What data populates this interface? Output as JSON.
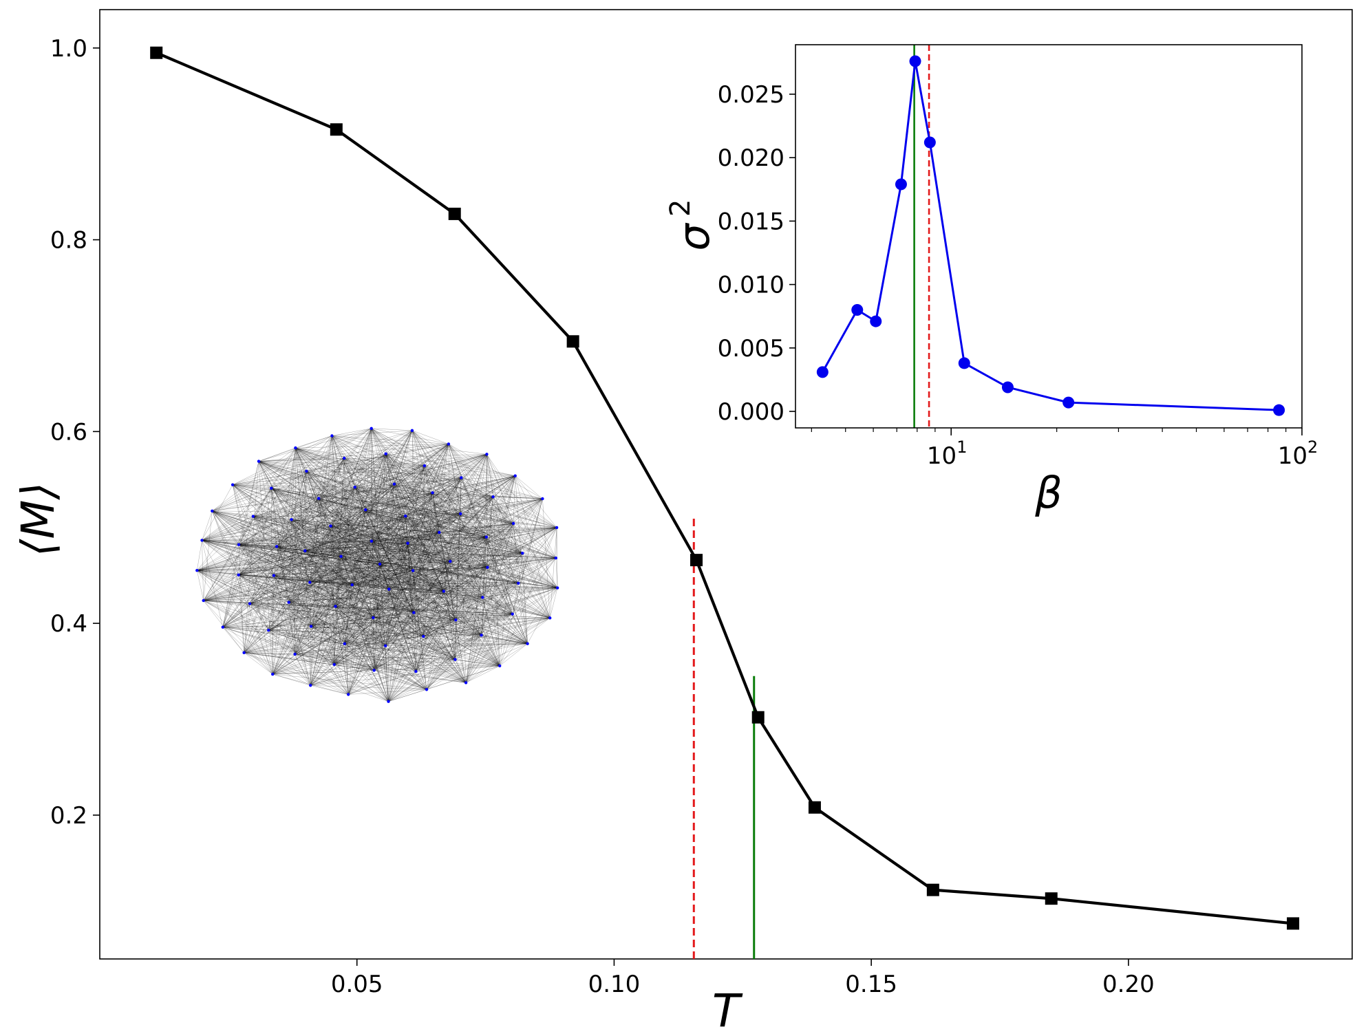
{
  "chart_data": [
    {
      "type": "line",
      "name": "main",
      "xlabel": "T",
      "ylabel": "⟨M⟩",
      "xlim": [
        0.0,
        0.2435
      ],
      "ylim": [
        0.05,
        1.04
      ],
      "xticks": [
        0.05,
        0.1,
        0.15,
        0.2
      ],
      "xtick_labels": [
        "0.05",
        "0.10",
        "0.15",
        "0.20"
      ],
      "yticks": [
        0.2,
        0.4,
        0.6,
        0.8,
        1.0
      ],
      "ytick_labels": [
        "0.2",
        "0.4",
        "0.6",
        "0.8",
        "1.0"
      ],
      "grid": false,
      "series": [
        {
          "color": "#000000",
          "marker": "square",
          "x": [
            0.011,
            0.046,
            0.069,
            0.092,
            0.116,
            0.128,
            0.139,
            0.162,
            0.185,
            0.232
          ],
          "y": [
            0.995,
            0.915,
            0.827,
            0.694,
            0.466,
            0.302,
            0.208,
            0.122,
            0.113,
            0.087
          ]
        }
      ],
      "vlines": [
        {
          "x": 0.1155,
          "ymax": 0.51,
          "color": "#e31a1c",
          "style": "dashed"
        },
        {
          "x": 0.1272,
          "ymax": 0.345,
          "color": "#0a7d0a",
          "style": "solid"
        }
      ]
    },
    {
      "type": "line",
      "name": "inset",
      "xlabel": "β",
      "ylabel": "σ",
      "ylabel_sup": "2",
      "xscale": "log",
      "xlim": [
        3.6,
        100
      ],
      "ylim": [
        -0.0013,
        0.0289
      ],
      "xticks": [
        10,
        100
      ],
      "xtick_labels": [
        {
          "base": "10",
          "exp": "1"
        },
        {
          "base": "10",
          "exp": "2"
        }
      ],
      "yticks": [
        0.0,
        0.005,
        0.01,
        0.015,
        0.02,
        0.025
      ],
      "ytick_labels": [
        "0.000",
        "0.005",
        "0.010",
        "0.015",
        "0.020",
        "0.025"
      ],
      "grid": false,
      "series": [
        {
          "color": "#0000ee",
          "marker": "circle",
          "x": [
            4.3,
            5.4,
            6.1,
            7.2,
            7.9,
            8.7,
            10.9,
            14.5,
            21.6,
            86.0
          ],
          "y": [
            0.0031,
            0.008,
            0.0071,
            0.0179,
            0.0276,
            0.0212,
            0.0038,
            0.0019,
            0.0007,
            0.0001
          ]
        }
      ],
      "vlines": [
        {
          "x": 7.85,
          "color": "#0a7d0a",
          "style": "solid"
        },
        {
          "x": 8.65,
          "color": "#e31a1c",
          "style": "dashed"
        }
      ]
    }
  ],
  "network_graph": {
    "node_color": "#0000ff",
    "edge_color": "#000000",
    "node_count": 87
  }
}
